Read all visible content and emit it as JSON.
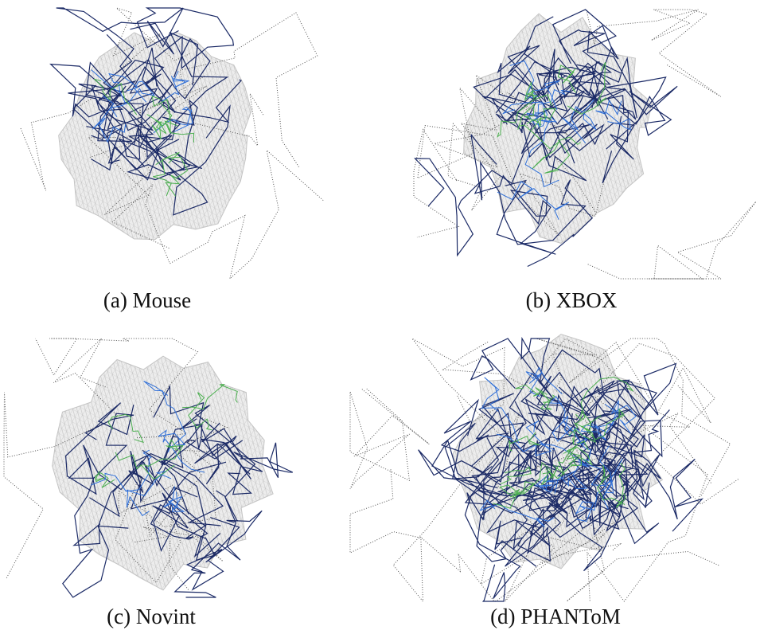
{
  "figure": {
    "panels": [
      {
        "caption": "(a) Mouse"
      },
      {
        "caption": "(b) XBOX"
      },
      {
        "caption": "(c) Novint"
      },
      {
        "caption": "(d) PHANToM"
      }
    ]
  }
}
